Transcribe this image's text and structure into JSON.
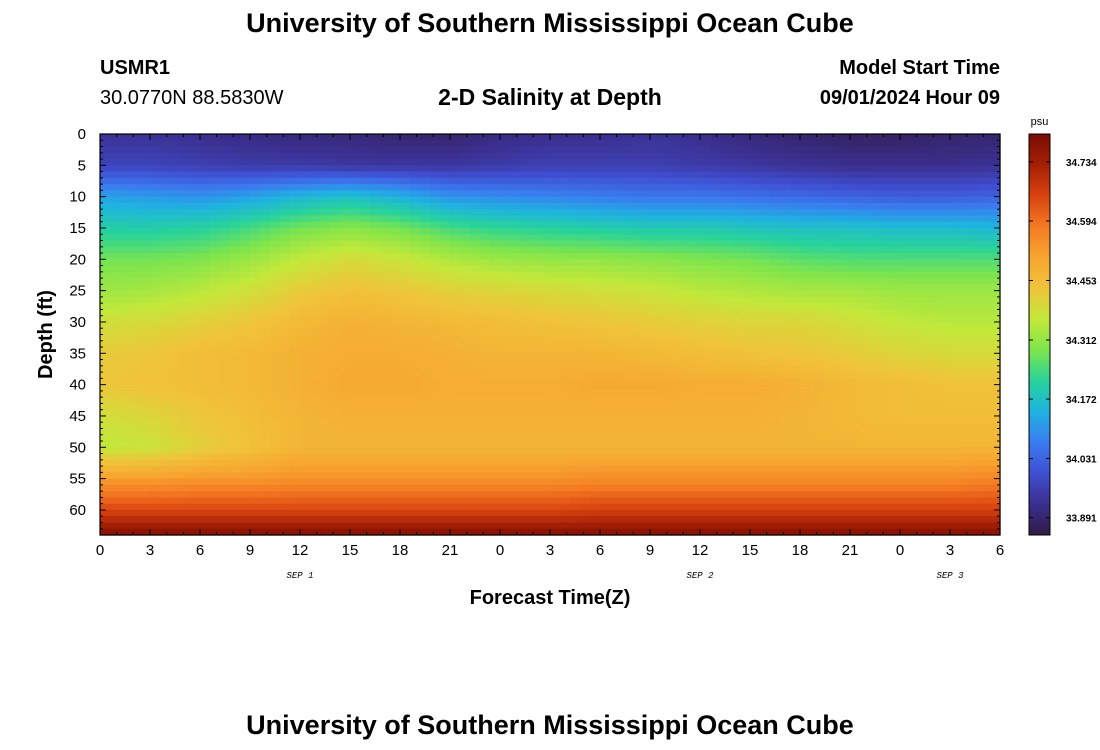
{
  "header": {
    "title": "University of Southern Mississippi Ocean Cube",
    "station_id": "USMR1",
    "location": "30.0770N  88.5830W",
    "plot_title": "2-D Salinity at Depth",
    "model_start_label": "Model Start Time",
    "model_start_value": "09/01/2024 Hour 09"
  },
  "footer": {
    "title": "University of Southern Mississippi Ocean Cube"
  },
  "chart_data": {
    "type": "heatmap",
    "title": "2-D Salinity at Depth",
    "xlabel": "Forecast Time(Z)",
    "ylabel": "Depth (ft)",
    "x_hours": [
      0,
      3,
      6,
      9,
      12,
      15,
      18,
      21,
      24,
      27,
      30,
      33,
      36,
      39,
      42,
      45,
      48,
      51,
      54
    ],
    "x_tick_labels": [
      "0",
      "3",
      "6",
      "9",
      "12",
      "15",
      "18",
      "21",
      "0",
      "3",
      "6",
      "9",
      "12",
      "15",
      "18",
      "21",
      "0",
      "3",
      "6"
    ],
    "date_labels": [
      {
        "hour": 12,
        "label": "SEP 1"
      },
      {
        "hour": 36,
        "label": "SEP 2"
      },
      {
        "hour": 51,
        "label": "SEP 3"
      }
    ],
    "depth_ticks": [
      0,
      5,
      10,
      15,
      20,
      25,
      30,
      35,
      40,
      45,
      50,
      55,
      60
    ],
    "xlim": [
      0,
      54
    ],
    "ylim": [
      0,
      64
    ],
    "y_inverted": true,
    "depths_ft": [
      0,
      5,
      10,
      15,
      20,
      25,
      30,
      35,
      40,
      45,
      50,
      55,
      60,
      64
    ],
    "salinity_psu": [
      [
        33.93,
        33.93,
        33.92,
        33.91,
        33.9,
        33.9,
        33.89,
        33.89,
        33.91,
        33.92,
        33.92,
        33.93,
        33.92,
        33.9,
        33.89,
        33.88,
        33.88,
        33.89,
        33.89
      ],
      [
        33.97,
        33.97,
        33.96,
        33.95,
        33.95,
        33.94,
        33.94,
        33.94,
        33.95,
        33.96,
        33.96,
        33.96,
        33.95,
        33.94,
        33.93,
        33.92,
        33.92,
        33.92,
        33.93
      ],
      [
        34.12,
        34.11,
        34.1,
        34.12,
        34.15,
        34.17,
        34.14,
        34.1,
        34.09,
        34.08,
        34.07,
        34.06,
        34.06,
        34.05,
        34.04,
        34.03,
        34.02,
        34.02,
        34.03
      ],
      [
        34.2,
        34.2,
        34.21,
        34.24,
        34.28,
        34.3,
        34.28,
        34.24,
        34.22,
        34.21,
        34.2,
        34.19,
        34.19,
        34.18,
        34.17,
        34.17,
        34.16,
        34.16,
        34.15
      ],
      [
        34.28,
        34.28,
        34.29,
        34.32,
        34.36,
        34.39,
        34.37,
        34.34,
        34.32,
        34.31,
        34.31,
        34.3,
        34.29,
        34.28,
        34.26,
        34.25,
        34.25,
        34.25,
        34.25
      ],
      [
        34.32,
        34.33,
        34.35,
        34.38,
        34.42,
        34.44,
        34.43,
        34.41,
        34.4,
        34.39,
        34.38,
        34.37,
        34.35,
        34.34,
        34.33,
        34.33,
        34.32,
        34.32,
        34.32
      ],
      [
        34.38,
        34.39,
        34.41,
        34.43,
        34.46,
        34.48,
        34.47,
        34.46,
        34.45,
        34.44,
        34.43,
        34.42,
        34.41,
        34.4,
        34.4,
        34.38,
        34.36,
        34.35,
        34.35
      ],
      [
        34.42,
        34.43,
        34.45,
        34.46,
        34.48,
        34.49,
        34.49,
        34.48,
        34.47,
        34.47,
        34.47,
        34.46,
        34.45,
        34.44,
        34.43,
        34.42,
        34.4,
        34.39,
        34.39
      ],
      [
        34.43,
        34.44,
        34.45,
        34.46,
        34.48,
        34.5,
        34.5,
        34.49,
        34.49,
        34.49,
        34.5,
        34.5,
        34.49,
        34.49,
        34.48,
        34.46,
        34.45,
        34.44,
        34.44
      ],
      [
        34.38,
        34.4,
        34.43,
        34.45,
        34.47,
        34.48,
        34.48,
        34.48,
        34.48,
        34.48,
        34.48,
        34.48,
        34.48,
        34.48,
        34.47,
        34.46,
        34.45,
        34.45,
        34.45
      ],
      [
        34.36,
        34.37,
        34.41,
        34.44,
        34.47,
        34.47,
        34.47,
        34.47,
        34.47,
        34.47,
        34.47,
        34.47,
        34.47,
        34.47,
        34.47,
        34.47,
        34.47,
        34.47,
        34.47
      ],
      [
        34.52,
        34.52,
        34.53,
        34.53,
        34.54,
        34.54,
        34.54,
        34.54,
        34.54,
        34.54,
        34.55,
        34.55,
        34.55,
        34.55,
        34.55,
        34.55,
        34.55,
        34.55,
        34.56
      ],
      [
        34.65,
        34.65,
        34.65,
        34.65,
        34.65,
        34.65,
        34.65,
        34.65,
        34.65,
        34.65,
        34.66,
        34.66,
        34.66,
        34.66,
        34.66,
        34.66,
        34.66,
        34.66,
        34.66
      ],
      [
        34.78,
        34.78,
        34.78,
        34.78,
        34.78,
        34.78,
        34.78,
        34.78,
        34.78,
        34.78,
        34.78,
        34.78,
        34.78,
        34.78,
        34.78,
        34.78,
        34.78,
        34.78,
        34.78
      ]
    ],
    "colorbar": {
      "unit": "psu",
      "min": 33.85,
      "max": 34.8,
      "tick_values": [
        33.891,
        34.031,
        34.172,
        34.312,
        34.453,
        34.594,
        34.734
      ],
      "tick_labels": [
        "33.891",
        "34.031",
        "34.172",
        "34.312",
        "34.453",
        "34.594",
        "34.734"
      ]
    },
    "colormap": [
      "#2f1b45",
      "#3b2f8f",
      "#3f4fd1",
      "#3a7cf0",
      "#1fb3e0",
      "#27d39b",
      "#7ee54c",
      "#c3e83a",
      "#f0c43a",
      "#f7a530",
      "#f47a22",
      "#d9420f",
      "#a51f05",
      "#7a0c02"
    ]
  }
}
